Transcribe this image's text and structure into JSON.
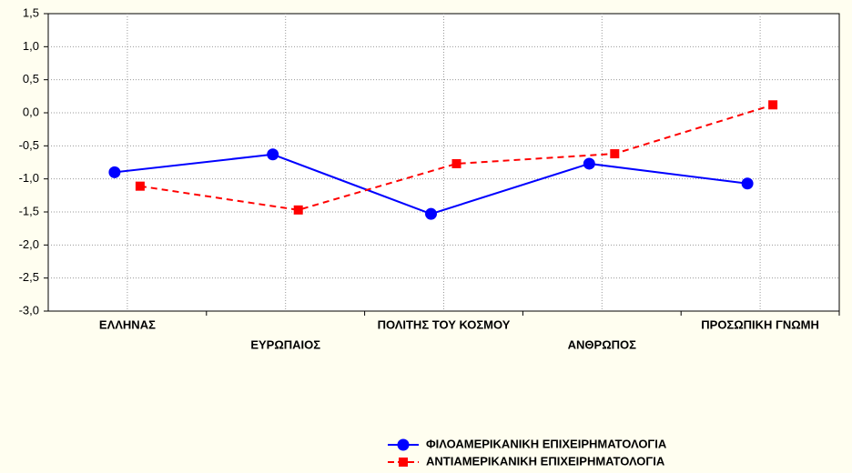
{
  "chart_data": {
    "type": "line",
    "categories": [
      "ΕΛΛΗΝΑΣ",
      "ΕΥΡΩΠΑΙΟΣ",
      "ΠΟΛΙΤΗΣ ΤΟΥ ΚΟΣΜΟΥ",
      "ΑΝΘΡΩΠΟΣ",
      "ΠΡΟΣΩΠΙΚΗ ΓΝΩΜΗ"
    ],
    "series": [
      {
        "name": "ΦΙΛΟΑΜΕΡΙΚΑΝΙΚΗ ΕΠΙΧΕΙΡΗΜΑΤΟΛΟΓΙΑ",
        "color": "#0000ff",
        "marker": "circle",
        "dash": "solid",
        "values": [
          -0.9,
          -0.63,
          -1.53,
          -0.77,
          -1.07
        ]
      },
      {
        "name": "ΑΝΤΙΑΜΕΡΙΚΑΝΙΚΗ ΕΠΙΧΕΙΡΗΜΑΤΟΛΟΓΙΑ",
        "color": "#ff0000",
        "marker": "square",
        "dash": "dashed",
        "values": [
          -1.11,
          -1.47,
          -0.77,
          -0.62,
          0.12
        ]
      }
    ],
    "ylim": [
      -3.0,
      1.5
    ],
    "yticks": [
      {
        "value": 1.5,
        "label": "1,5"
      },
      {
        "value": 1.0,
        "label": "1,0"
      },
      {
        "value": 0.5,
        "label": "0,5"
      },
      {
        "value": 0,
        "label": "0,0"
      },
      {
        "value": -0.5,
        "label": "-0,5"
      },
      {
        "value": -1.0,
        "label": "-1,0"
      },
      {
        "value": -1.5,
        "label": "-1,5"
      },
      {
        "value": -2.0,
        "label": "-2,0"
      },
      {
        "value": -2.5,
        "label": "-2,5"
      },
      {
        "value": -3.0,
        "label": "-3,0"
      }
    ],
    "grid": true,
    "legend": "bottom-right"
  }
}
